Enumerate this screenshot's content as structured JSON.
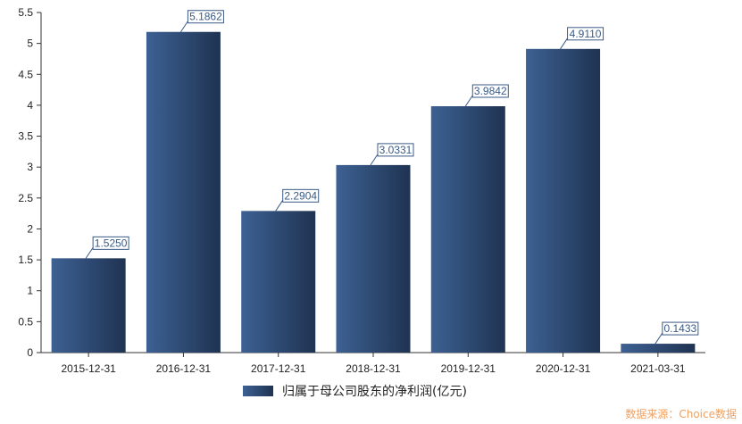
{
  "chart_data": {
    "type": "bar",
    "categories": [
      "2015-12-31",
      "2016-12-31",
      "2017-12-31",
      "2018-12-31",
      "2019-12-31",
      "2020-12-31",
      "2021-03-31"
    ],
    "series": [
      {
        "name": "归属于母公司股东的净利润(亿元)",
        "values": [
          1.525,
          5.1862,
          2.2904,
          3.0331,
          3.9842,
          4.911,
          0.1433
        ],
        "labels": [
          "1.5250",
          "5.1862",
          "2.2904",
          "3.0331",
          "3.9842",
          "4.9110",
          "0.1433"
        ]
      }
    ],
    "yticks": [
      "0",
      "0.5",
      "1",
      "1.5",
      "2",
      "2.5",
      "3",
      "3.5",
      "4",
      "4.5",
      "5",
      "5.5"
    ],
    "ylim": [
      0,
      5.5
    ],
    "grid": false,
    "legend_position": "bottom",
    "colors": {
      "bar_light": "#3d6193",
      "bar_dark": "#1f3352",
      "label_border": "#3a5a85"
    }
  },
  "source_text": "数据来源：Choice数据"
}
